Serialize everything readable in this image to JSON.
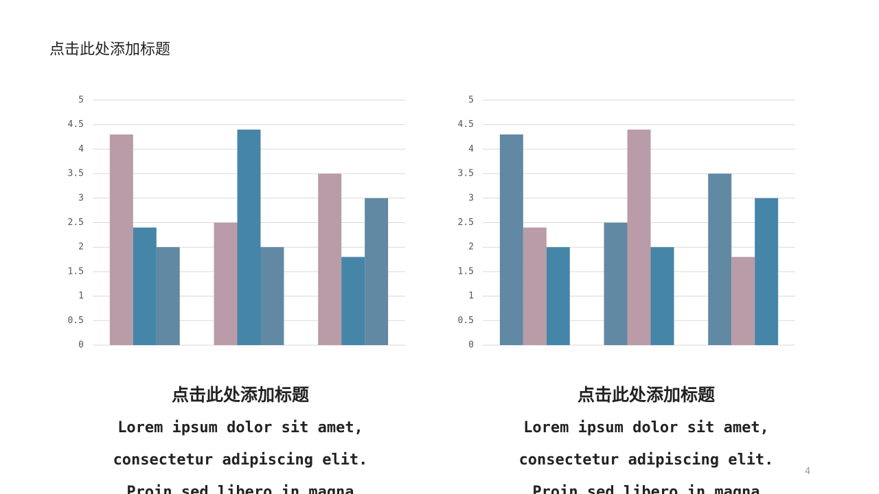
{
  "header": {
    "title": "点击此处添加标题"
  },
  "chart_data": [
    {
      "type": "bar",
      "categories": [
        null,
        null,
        null
      ],
      "series": [
        {
          "color": "#b99ca7",
          "values": [
            4.3,
            2.5,
            3.5
          ]
        },
        {
          "color": "#4585a8",
          "values": [
            2.4,
            4.4,
            1.8
          ]
        },
        {
          "color": "#6289a3",
          "values": [
            2,
            2,
            3
          ]
        }
      ],
      "ylim": [
        0,
        5
      ],
      "yticks": [
        0,
        0.5,
        1,
        1.5,
        2,
        2.5,
        3,
        3.5,
        4,
        4.5,
        5
      ],
      "grid": true
    },
    {
      "type": "bar",
      "categories": [
        null,
        null,
        null
      ],
      "series": [
        {
          "color": "#6289a3",
          "values": [
            4.3,
            2.5,
            3.5
          ]
        },
        {
          "color": "#b99ca7",
          "values": [
            2.4,
            4.4,
            1.8
          ]
        },
        {
          "color": "#4585a8",
          "values": [
            2,
            2,
            3
          ]
        }
      ],
      "ylim": [
        0,
        5
      ],
      "yticks": [
        0,
        0.5,
        1,
        1.5,
        2,
        2.5,
        3,
        3.5,
        4,
        4.5,
        5
      ],
      "grid": true
    }
  ],
  "captions": [
    {
      "title": "点击此处添加标题",
      "lines": [
        "Lorem ipsum dolor sit amet,",
        "consectetur adipiscing elit.",
        "Proin sed libero in magna"
      ]
    },
    {
      "title": "点击此处添加标题",
      "lines": [
        "Lorem ipsum dolor sit amet,",
        "consectetur adipiscing elit.",
        "Proin sed libero in magna"
      ]
    }
  ],
  "page_number": "4"
}
